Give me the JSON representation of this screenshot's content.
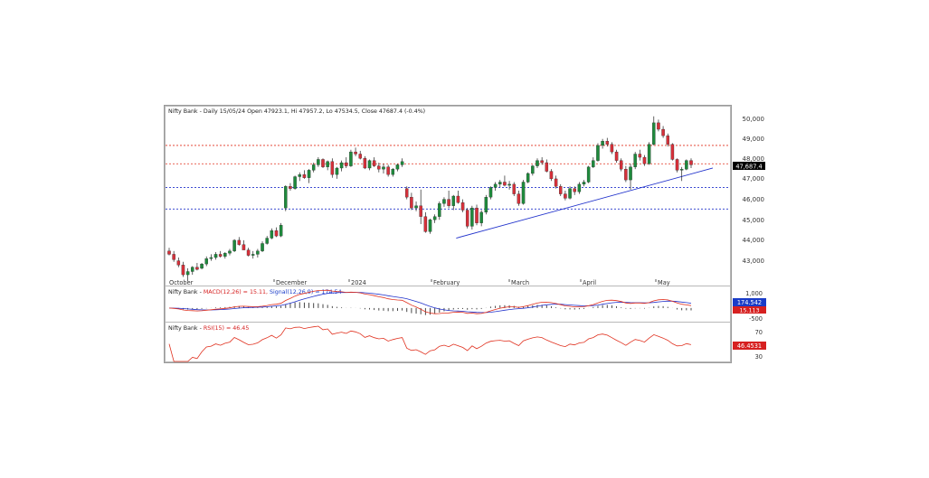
{
  "colors": {
    "up": "#1e8a3c",
    "down": "#d6303a",
    "trendline": "#2233cc",
    "resistance_line": "#e0301e",
    "support_line": "#2233cc",
    "macd_line": "#e0301e",
    "signal_line": "#2233cc",
    "rsi_line": "#e0301e",
    "price_tag_bg": "#000000",
    "signal_tag_bg": "#1a3cc8",
    "macd_tag_bg": "#d62020",
    "rsi_tag_bg": "#d62020"
  },
  "price_panel": {
    "header": "Nifty Bank - Daily 15/05/24 Open 47923.1, Hi 47957.2, Lo 47534.5, Close 47687.4 (-0.4%)",
    "y_ticks": [
      "50,000",
      "49,000",
      "48,000",
      "47,000",
      "46,000",
      "45,000",
      "44,000",
      "43,000"
    ],
    "last_price_tag": "47,687.4",
    "x_labels": [
      "October",
      "December",
      "2024",
      "February",
      "March",
      "April",
      "May"
    ]
  },
  "macd_panel": {
    "header_prefix": "Nifty Bank - ",
    "header_macd": "MACD(12,26) = 15.11,",
    "header_signal": "Signal(12,26,9) = 174.54",
    "y_ticks": [
      "1,000",
      "-500"
    ],
    "signal_tag": "174.542",
    "macd_tag": "15.113"
  },
  "rsi_panel": {
    "header_prefix": "Nifty Bank - ",
    "header_rsi": "RSI(15) = 46.45",
    "y_ticks": [
      "70",
      "30"
    ],
    "rsi_tag": "46.4531"
  },
  "chart_data": {
    "type": "candlestick",
    "title": "Nifty Bank - Daily 15/05/24",
    "ylim": [
      42100,
      50400
    ],
    "levels": {
      "resistance": [
        48600,
        47750
      ],
      "support": [
        46650,
        45650
      ]
    },
    "trendline": {
      "start": [
        44300,
        0.55
      ],
      "end": [
        47550,
        1.0
      ]
    },
    "ohlc": [
      [
        43700,
        43850,
        43500,
        43550
      ],
      [
        43550,
        43700,
        43200,
        43300
      ],
      [
        43250,
        43400,
        42950,
        43050
      ],
      [
        43050,
        43200,
        42500,
        42600
      ],
      [
        42600,
        42900,
        42300,
        42750
      ],
      [
        42750,
        43000,
        42600,
        42950
      ],
      [
        42950,
        43150,
        42800,
        42850
      ],
      [
        42900,
        43150,
        42850,
        43100
      ],
      [
        43100,
        43450,
        43000,
        43350
      ],
      [
        43350,
        43550,
        43250,
        43400
      ],
      [
        43400,
        43650,
        43300,
        43550
      ],
      [
        43550,
        43700,
        43400,
        43450
      ],
      [
        43450,
        43650,
        43350,
        43600
      ],
      [
        43600,
        43800,
        43500,
        43700
      ],
      [
        43700,
        44250,
        43650,
        44200
      ],
      [
        44200,
        44350,
        43950,
        44000
      ],
      [
        44000,
        44200,
        43800,
        43750
      ],
      [
        43750,
        43850,
        43450,
        43500
      ],
      [
        43500,
        43700,
        43350,
        43550
      ],
      [
        43550,
        43800,
        43400,
        43700
      ],
      [
        43700,
        44150,
        43650,
        44050
      ],
      [
        44050,
        44400,
        44000,
        44300
      ],
      [
        44300,
        44750,
        44250,
        44650
      ],
      [
        44650,
        44800,
        44350,
        44400
      ],
      [
        44400,
        45000,
        44350,
        44900
      ],
      [
        45700,
        46750,
        45550,
        46700
      ],
      [
        46700,
        46850,
        46500,
        46600
      ],
      [
        46600,
        47200,
        46550,
        47150
      ],
      [
        47150,
        47350,
        46950,
        47250
      ],
      [
        47250,
        47450,
        47050,
        47100
      ],
      [
        47100,
        47500,
        46850,
        47450
      ],
      [
        47450,
        47800,
        47350,
        47700
      ],
      [
        47700,
        48050,
        47600,
        47950
      ],
      [
        47950,
        48000,
        47550,
        47600
      ],
      [
        47600,
        47900,
        47450,
        47850
      ],
      [
        47850,
        48000,
        47100,
        47250
      ],
      [
        47250,
        47600,
        47050,
        47550
      ],
      [
        47550,
        47900,
        47400,
        47800
      ],
      [
        47800,
        48050,
        47550,
        47650
      ],
      [
        47650,
        48400,
        47600,
        48300
      ],
      [
        48300,
        48500,
        48100,
        48200
      ],
      [
        48200,
        48350,
        47950,
        48000
      ],
      [
        48000,
        48100,
        47500,
        47550
      ],
      [
        47550,
        47950,
        47450,
        47900
      ],
      [
        47900,
        48050,
        47600,
        47650
      ],
      [
        47650,
        47800,
        47350,
        47500
      ],
      [
        47500,
        47750,
        47300,
        47600
      ],
      [
        47600,
        47700,
        47150,
        47250
      ],
      [
        47250,
        47550,
        47150,
        47500
      ],
      [
        47500,
        47750,
        47400,
        47700
      ],
      [
        47700,
        48000,
        47600,
        47850
      ],
      [
        46600,
        46700,
        46100,
        46200
      ],
      [
        46200,
        46400,
        45600,
        45700
      ],
      [
        45700,
        46000,
        45550,
        45800
      ],
      [
        45800,
        46550,
        44950,
        45300
      ],
      [
        45300,
        45500,
        44550,
        44600
      ],
      [
        44600,
        45200,
        44500,
        45150
      ],
      [
        45150,
        45400,
        45000,
        45300
      ],
      [
        45300,
        46000,
        45150,
        45900
      ],
      [
        45900,
        46200,
        45750,
        46100
      ],
      [
        46100,
        46500,
        45700,
        45800
      ],
      [
        45800,
        46300,
        45600,
        46250
      ],
      [
        46250,
        46500,
        45900,
        45950
      ],
      [
        45950,
        46100,
        45500,
        45600
      ],
      [
        45600,
        45700,
        44750,
        44850
      ],
      [
        44850,
        45800,
        44700,
        45700
      ],
      [
        45700,
        45850,
        44900,
        45000
      ],
      [
        45000,
        45600,
        44850,
        45500
      ],
      [
        45500,
        46300,
        45400,
        46200
      ],
      [
        46200,
        46700,
        46100,
        46650
      ],
      [
        46650,
        46900,
        46500,
        46800
      ],
      [
        46800,
        47000,
        46650,
        46900
      ],
      [
        46900,
        47200,
        46700,
        46750
      ],
      [
        46750,
        46950,
        46550,
        46800
      ],
      [
        46800,
        46900,
        46250,
        46350
      ],
      [
        46350,
        46500,
        45800,
        45900
      ],
      [
        45900,
        47000,
        45850,
        46900
      ],
      [
        46900,
        47350,
        46850,
        47300
      ],
      [
        47300,
        47700,
        47200,
        47650
      ],
      [
        47650,
        48000,
        47550,
        47900
      ],
      [
        47900,
        48050,
        47700,
        47800
      ],
      [
        47800,
        47950,
        47350,
        47400
      ],
      [
        47400,
        47500,
        46950,
        47050
      ],
      [
        47050,
        47200,
        46600,
        46700
      ],
      [
        46700,
        46800,
        46250,
        46350
      ],
      [
        46350,
        46500,
        46050,
        46150
      ],
      [
        46150,
        46700,
        46100,
        46600
      ],
      [
        46600,
        46700,
        46300,
        46450
      ],
      [
        46450,
        46900,
        46350,
        46800
      ],
      [
        46800,
        47000,
        46700,
        46900
      ],
      [
        46900,
        47650,
        46850,
        47600
      ],
      [
        47600,
        48050,
        47550,
        47900
      ],
      [
        47900,
        48700,
        47850,
        48600
      ],
      [
        48600,
        48900,
        48450,
        48800
      ],
      [
        48800,
        48950,
        48550,
        48650
      ],
      [
        48650,
        48750,
        48200,
        48300
      ],
      [
        48300,
        48400,
        47800,
        47900
      ],
      [
        47900,
        48000,
        47400,
        47500
      ],
      [
        47500,
        47650,
        46900,
        47000
      ],
      [
        47000,
        47750,
        46550,
        47600
      ],
      [
        47600,
        48300,
        47500,
        48200
      ],
      [
        48200,
        48400,
        47900,
        48050
      ],
      [
        48050,
        48150,
        47650,
        47750
      ],
      [
        47750,
        48750,
        47700,
        48650
      ],
      [
        48650,
        49950,
        48600,
        49650
      ],
      [
        49650,
        49800,
        49250,
        49350
      ],
      [
        49350,
        49500,
        48950,
        49050
      ],
      [
        49050,
        49150,
        48550,
        48650
      ],
      [
        48650,
        48700,
        47900,
        47950
      ],
      [
        47950,
        48000,
        47350,
        47450
      ],
      [
        47450,
        47600,
        46950,
        47500
      ],
      [
        47500,
        47950,
        47450,
        47900
      ],
      [
        47900,
        48000,
        47550,
        47700
      ]
    ],
    "macd": {
      "name": "MACD(12,26)",
      "last": 15.11,
      "signal_name": "Signal(12,26,9)",
      "signal_last": 174.54,
      "ylim": [
        -800,
        1300
      ]
    },
    "rsi": {
      "name": "RSI(15)",
      "last": 46.45,
      "ylim": [
        20,
        85
      ]
    }
  }
}
